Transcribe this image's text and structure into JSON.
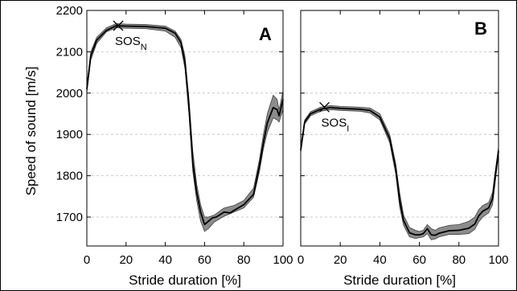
{
  "chart_data": [
    {
      "panel": "A",
      "type": "line",
      "xlabel": "Stride duration [%]",
      "ylabel": "Speed of sound [m/s]",
      "xlim": [
        0,
        100
      ],
      "ylim": [
        1630,
        2200
      ],
      "xticks": [
        0,
        20,
        40,
        60,
        80,
        100
      ],
      "yticks": [
        1700,
        1800,
        1900,
        2000,
        2100,
        2200
      ],
      "grid": "horizontal-dashed",
      "annotation": {
        "text": "SOS",
        "sub": "N",
        "x": 16,
        "y": 2163
      },
      "series": [
        {
          "kind": "band",
          "color": "#8c8c8c",
          "x": [
            0,
            2,
            5,
            10,
            15,
            20,
            30,
            40,
            45,
            48,
            50,
            52,
            54,
            56,
            58,
            60,
            62,
            65,
            70,
            75,
            80,
            85,
            88,
            90,
            92,
            95,
            97,
            98,
            100
          ],
          "upper": [
            2020,
            2100,
            2135,
            2158,
            2168,
            2167,
            2166,
            2162,
            2150,
            2130,
            2090,
            1990,
            1860,
            1780,
            1730,
            1700,
            1700,
            1705,
            1722,
            1728,
            1740,
            1770,
            1840,
            1900,
            1950,
            1995,
            1985,
            1960,
            2005
          ],
          "lower": [
            2000,
            2080,
            2120,
            2148,
            2158,
            2157,
            2156,
            2150,
            2135,
            2110,
            2060,
            1950,
            1810,
            1740,
            1690,
            1665,
            1672,
            1688,
            1702,
            1712,
            1722,
            1748,
            1810,
            1865,
            1905,
            1940,
            1935,
            1930,
            1960
          ]
        },
        {
          "kind": "line",
          "color": "#000000",
          "x": [
            0,
            2,
            5,
            10,
            15,
            20,
            30,
            40,
            45,
            48,
            50,
            52,
            54,
            56,
            58,
            60,
            62,
            64,
            66,
            68,
            70,
            73,
            75,
            80,
            85,
            88,
            90,
            92,
            95,
            97,
            98,
            100
          ],
          "y": [
            2010,
            2090,
            2128,
            2152,
            2163,
            2162,
            2161,
            2157,
            2145,
            2122,
            2075,
            1970,
            1830,
            1760,
            1712,
            1682,
            1690,
            1698,
            1700,
            1706,
            1712,
            1710,
            1716,
            1730,
            1755,
            1825,
            1880,
            1928,
            1965,
            1960,
            1945,
            1985
          ]
        }
      ]
    },
    {
      "panel": "B",
      "type": "line",
      "xlabel": "Stride duration [%]",
      "ylabel": "",
      "xlim": [
        0,
        100
      ],
      "ylim": [
        1630,
        2200
      ],
      "xticks": [
        0,
        20,
        40,
        60,
        80,
        100
      ],
      "yticks": [
        1700,
        1800,
        1900,
        2000,
        2100,
        2200
      ],
      "grid": "horizontal-dashed",
      "annotation": {
        "text": "SOS",
        "sub": "I",
        "x": 12,
        "y": 1966
      },
      "series": [
        {
          "kind": "band",
          "color": "#8c8c8c",
          "x": [
            0,
            2,
            5,
            10,
            15,
            20,
            30,
            35,
            40,
            45,
            48,
            50,
            52,
            55,
            58,
            60,
            62,
            64,
            66,
            68,
            70,
            75,
            80,
            85,
            88,
            90,
            92,
            95,
            97,
            98,
            100
          ],
          "upper": [
            1870,
            1935,
            1955,
            1966,
            1970,
            1968,
            1966,
            1964,
            1950,
            1900,
            1830,
            1760,
            1705,
            1675,
            1668,
            1665,
            1668,
            1682,
            1672,
            1668,
            1674,
            1680,
            1682,
            1690,
            1700,
            1718,
            1728,
            1735,
            1760,
            1800,
            1870
          ],
          "lower": [
            1855,
            1925,
            1945,
            1956,
            1960,
            1958,
            1956,
            1952,
            1935,
            1880,
            1805,
            1725,
            1680,
            1652,
            1648,
            1650,
            1652,
            1660,
            1645,
            1647,
            1652,
            1658,
            1658,
            1660,
            1670,
            1688,
            1700,
            1710,
            1730,
            1770,
            1850
          ]
        },
        {
          "kind": "line",
          "color": "#000000",
          "x": [
            0,
            2,
            5,
            10,
            15,
            20,
            30,
            35,
            40,
            45,
            48,
            50,
            52,
            55,
            58,
            60,
            62,
            64,
            66,
            68,
            70,
            75,
            80,
            85,
            88,
            90,
            92,
            95,
            97,
            98,
            100
          ],
          "y": [
            1862,
            1930,
            1950,
            1961,
            1965,
            1963,
            1961,
            1958,
            1942,
            1890,
            1818,
            1742,
            1692,
            1662,
            1657,
            1657,
            1660,
            1672,
            1657,
            1656,
            1661,
            1667,
            1668,
            1673,
            1683,
            1703,
            1714,
            1722,
            1745,
            1785,
            1860
          ]
        }
      ]
    }
  ],
  "panel_labels": {
    "a": "A",
    "b": "B"
  },
  "ylabel": "Speed of sound [m/s]",
  "xlabel": "Stride duration [%]"
}
